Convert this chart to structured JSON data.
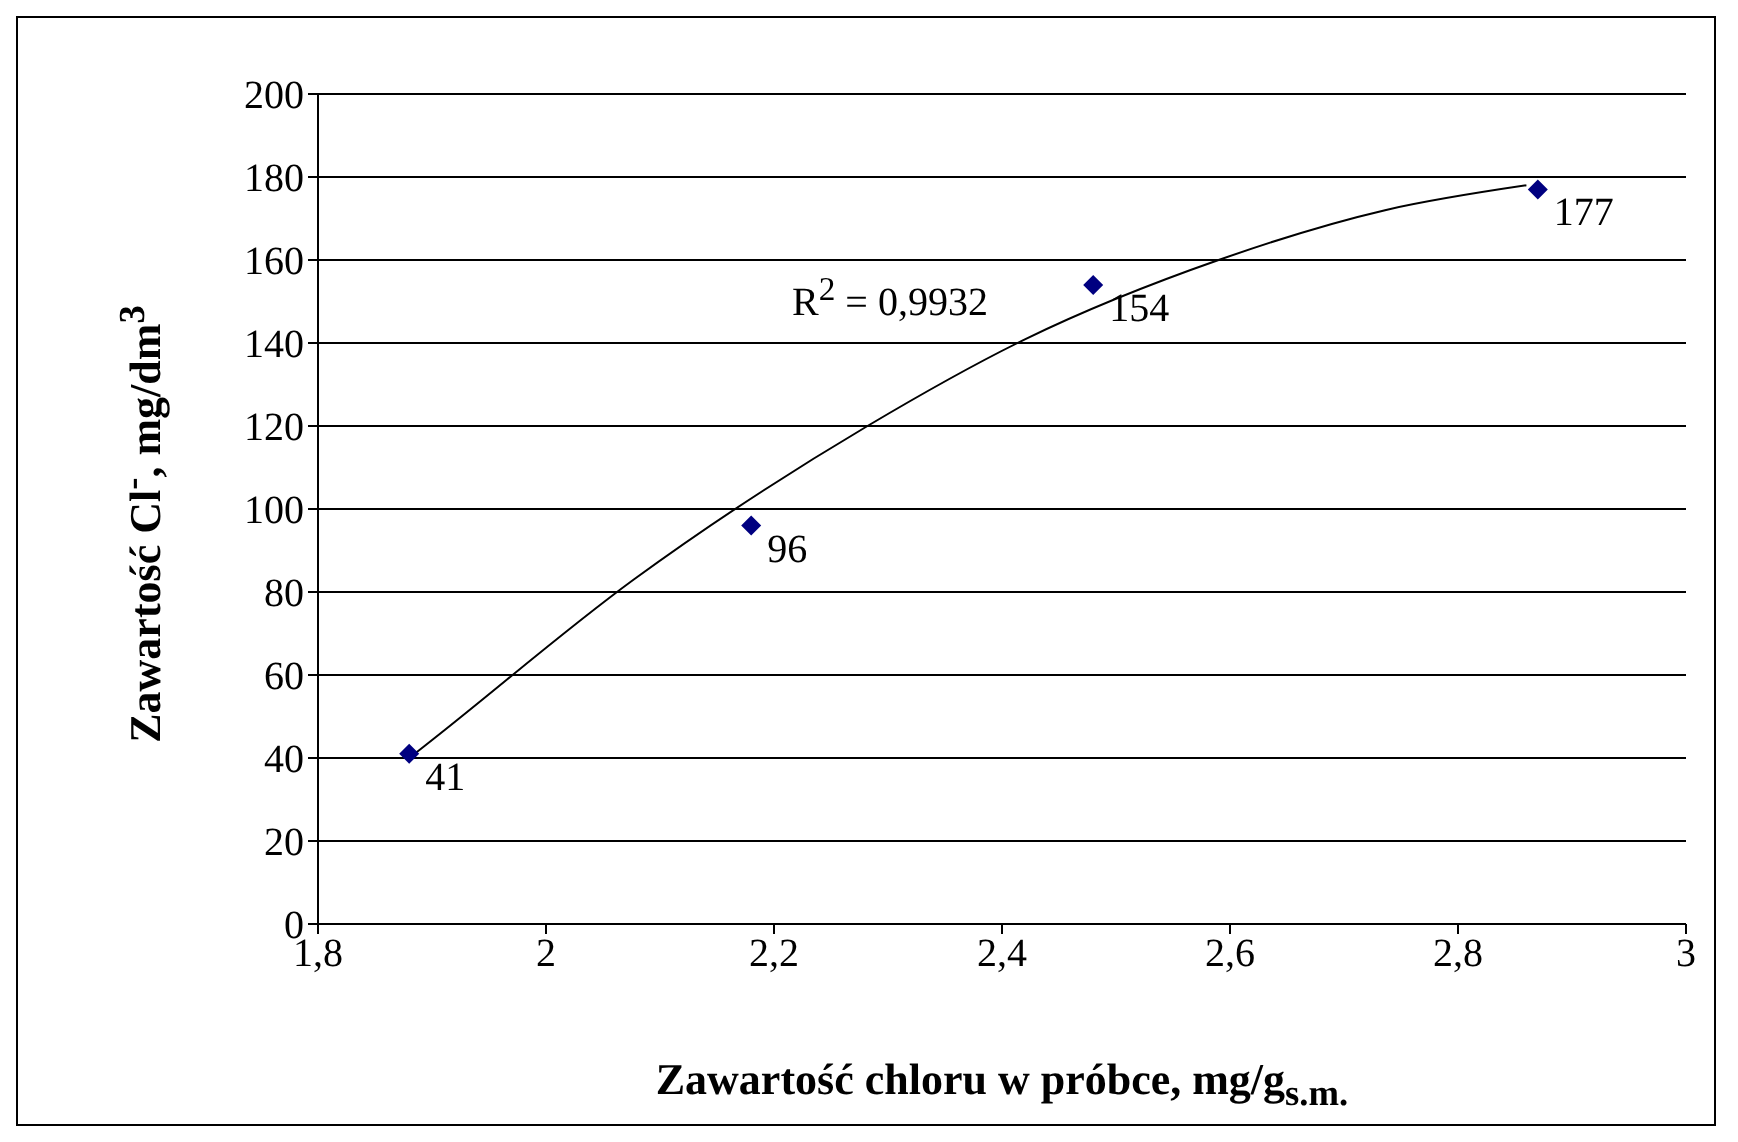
{
  "chart_data": {
    "type": "scatter",
    "xlabel": "Zawartość chloru w próbce, mg/g$_{s.m.}$",
    "ylabel": "Zawartość Cl$^{-}$,  mg/dm$^{3}$",
    "series": [
      {
        "type": "scatter",
        "color": "#000080",
        "marker": "diamond",
        "x": [
          1.88,
          2.18,
          2.48,
          2.87
        ],
        "values": [
          41,
          96,
          154,
          177
        ],
        "value_labels": [
          "41",
          "96",
          "154",
          "177"
        ]
      },
      {
        "type": "line",
        "color": "#000000",
        "marker": "none",
        "x": [
          1.88,
          1.894,
          2.077,
          2.282,
          2.421,
          2.59,
          2.736,
          2.86
        ],
        "values": [
          40,
          43,
          83,
          120,
          141,
          160,
          172,
          178
        ]
      }
    ],
    "grid": "y",
    "annotations": [
      "R$^{2}$ = 0,9932"
    ],
    "xlim": [
      1.8,
      3
    ],
    "xticks": [
      {
        "value": 1.8,
        "label": "1,8"
      },
      {
        "value": 2,
        "label": "2"
      },
      {
        "value": 2.2,
        "label": "2,2"
      },
      {
        "value": 2.4,
        "label": "2,4"
      },
      {
        "value": 2.6,
        "label": "2,6"
      },
      {
        "value": 2.8,
        "label": "2,8"
      },
      {
        "value": 3,
        "label": "3"
      }
    ],
    "ylim": [
      0,
      200
    ],
    "yticks": [
      0,
      20,
      40,
      60,
      80,
      100,
      120,
      140,
      160,
      180,
      200
    ]
  }
}
